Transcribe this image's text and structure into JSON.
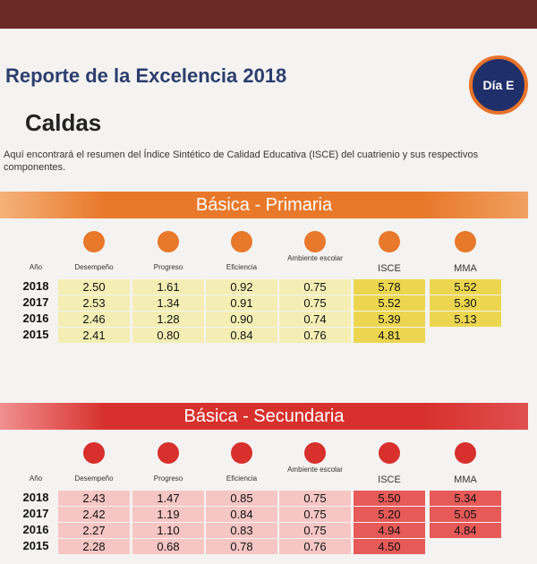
{
  "header": {
    "title": "Reporte de la Excelencia 2018",
    "logo": "Día E",
    "region": "Caldas",
    "description": "Aquí encontrará el resumen del Índice Sintético de Calidad Educativa (ISCE) del cuatrienio y sus respectivos componentes."
  },
  "sections": [
    {
      "title": "Básica - Primaria",
      "columns": [
        "Año",
        "Desempeño",
        "Progreso",
        "Eficiencia",
        "Ambiente escolar",
        "ISCE",
        "MMA"
      ],
      "rows": [
        [
          "2018",
          "2.50",
          "1.61",
          "0.92",
          "0.75",
          "5.78",
          "5.52"
        ],
        [
          "2017",
          "2.53",
          "1.34",
          "0.91",
          "0.75",
          "5.52",
          "5.30"
        ],
        [
          "2016",
          "2.46",
          "1.28",
          "0.90",
          "0.74",
          "5.39",
          "5.13"
        ],
        [
          "2015",
          "2.41",
          "0.80",
          "0.84",
          "0.76",
          "4.81"
        ]
      ]
    },
    {
      "title": "Básica - Secundaria",
      "columns": [
        "Año",
        "Desempeño",
        "Progreso",
        "Eficiencia",
        "Ambiente escolar",
        "ISCE",
        "MMA"
      ],
      "rows": [
        [
          "2018",
          "2.43",
          "1.47",
          "0.85",
          "0.75",
          "5.50",
          "5.34"
        ],
        [
          "2017",
          "2.42",
          "1.19",
          "0.84",
          "0.75",
          "5.20",
          "5.05"
        ],
        [
          "2016",
          "2.27",
          "1.10",
          "0.83",
          "0.75",
          "4.94",
          "4.84"
        ],
        [
          "2015",
          "2.28",
          "0.68",
          "0.78",
          "0.76",
          "4.50"
        ]
      ]
    }
  ]
}
